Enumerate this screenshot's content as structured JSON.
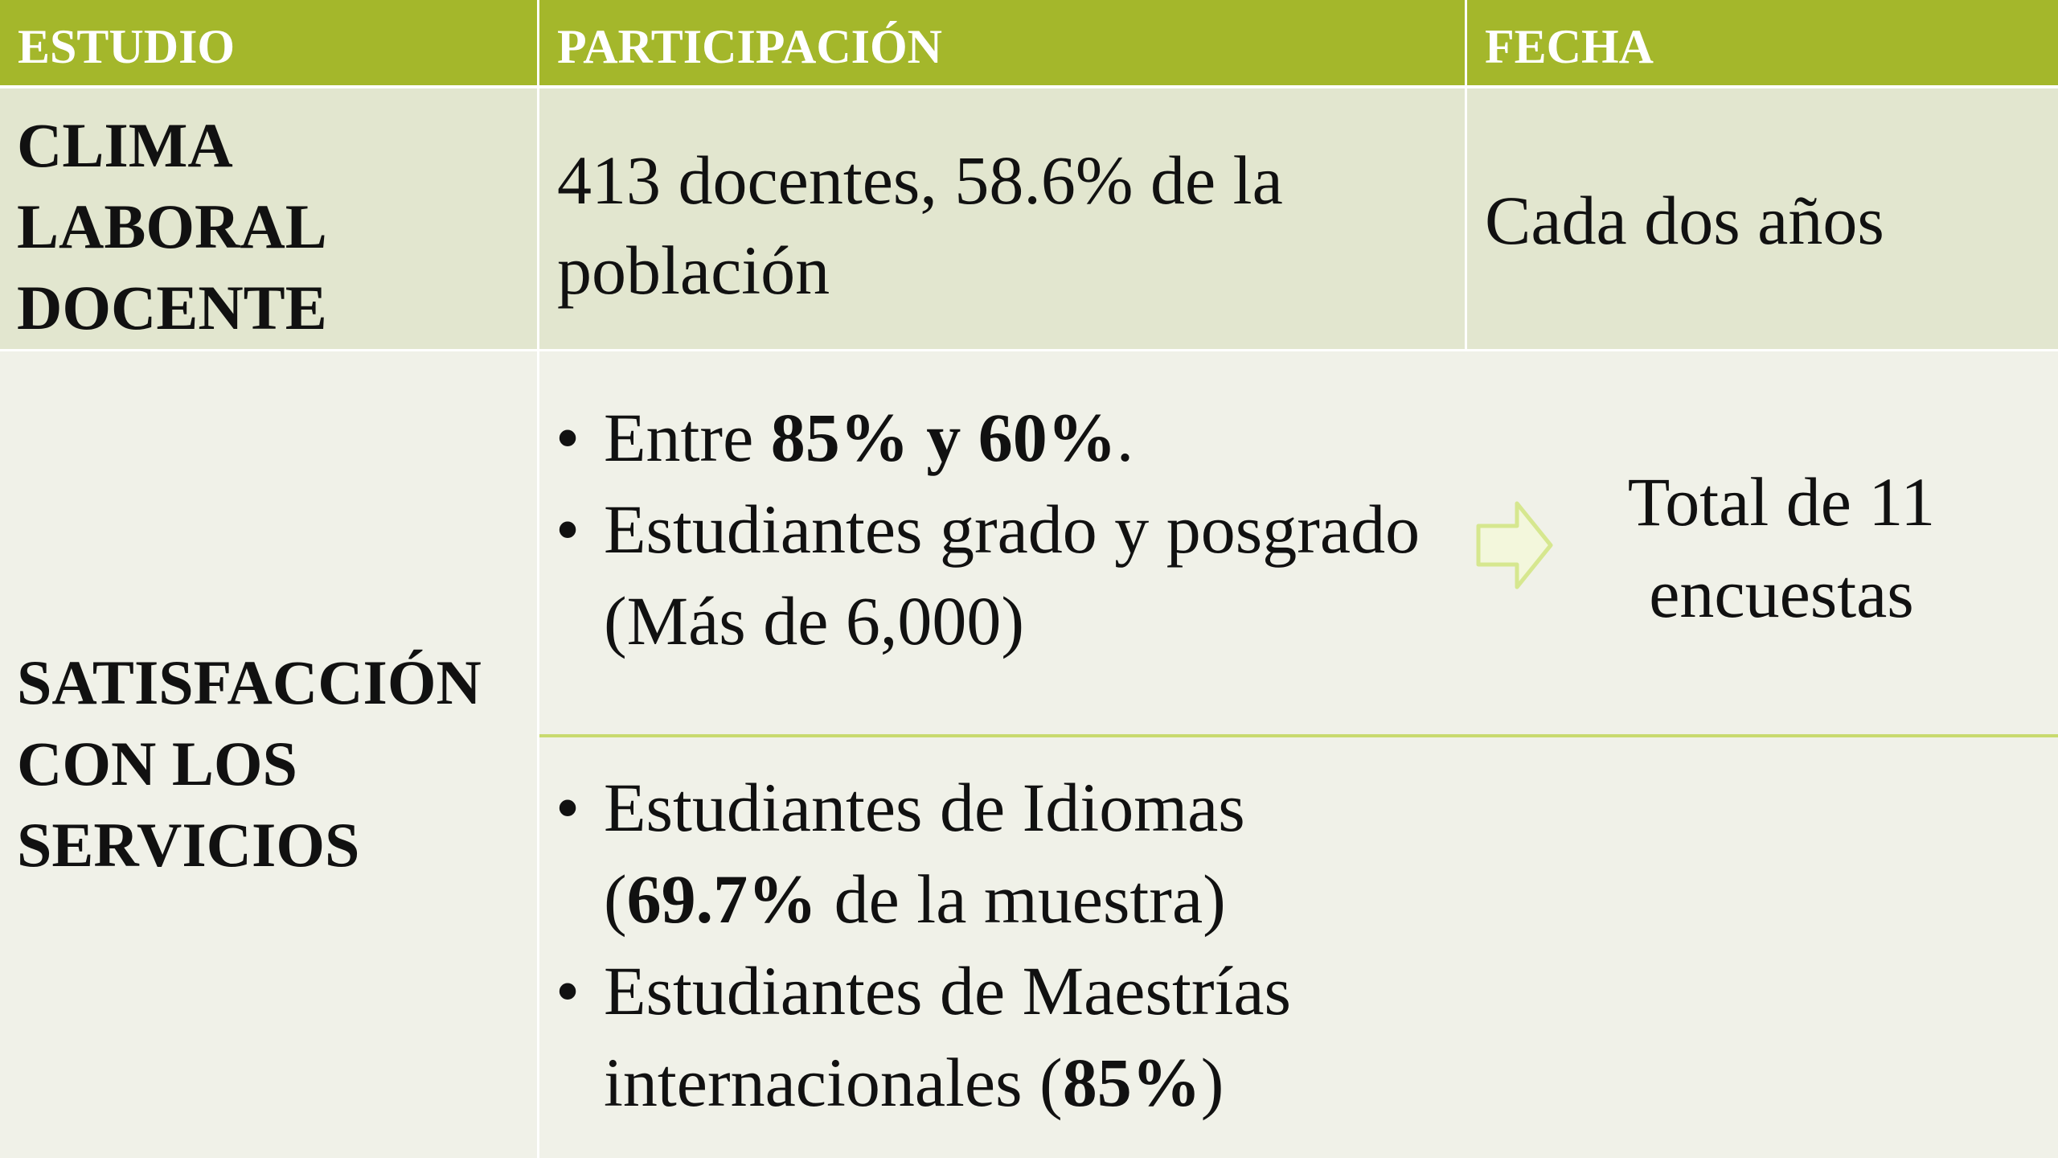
{
  "table": {
    "header": [
      "ESTUDIO",
      "PARTICIPACIÓN",
      "FECHA"
    ],
    "rows": [
      {
        "estudio": "CLIMA LABORAL DOCENTE",
        "participacion": "413 docentes, 58.6% de la población",
        "fecha": "Cada dos años"
      },
      {
        "estudio": "SATISFACCIÓN CON LOS SERVICIOS",
        "groups": [
          [
            [
              {
                "text": "Entre ",
                "bold": false
              },
              {
                "text": "85% y 60%",
                "bold": true
              },
              {
                "text": ".",
                "bold": false
              }
            ],
            [
              {
                "text": "Estudiantes grado y posgrado (Más de 6,000)",
                "bold": false
              }
            ]
          ],
          [
            [
              {
                "text": "Estudiantes de Idiomas (",
                "bold": false
              },
              {
                "text": "69.7%",
                "bold": true
              },
              {
                "text": " de la muestra)",
                "bold": false
              }
            ],
            [
              {
                "text": "Estudiantes de Maestrías internacionales (",
                "bold": false
              },
              {
                "text": "85%",
                "bold": true
              },
              {
                "text": ")",
                "bold": false
              }
            ]
          ]
        ],
        "fecha": "Total de 11 encuestas"
      }
    ]
  }
}
